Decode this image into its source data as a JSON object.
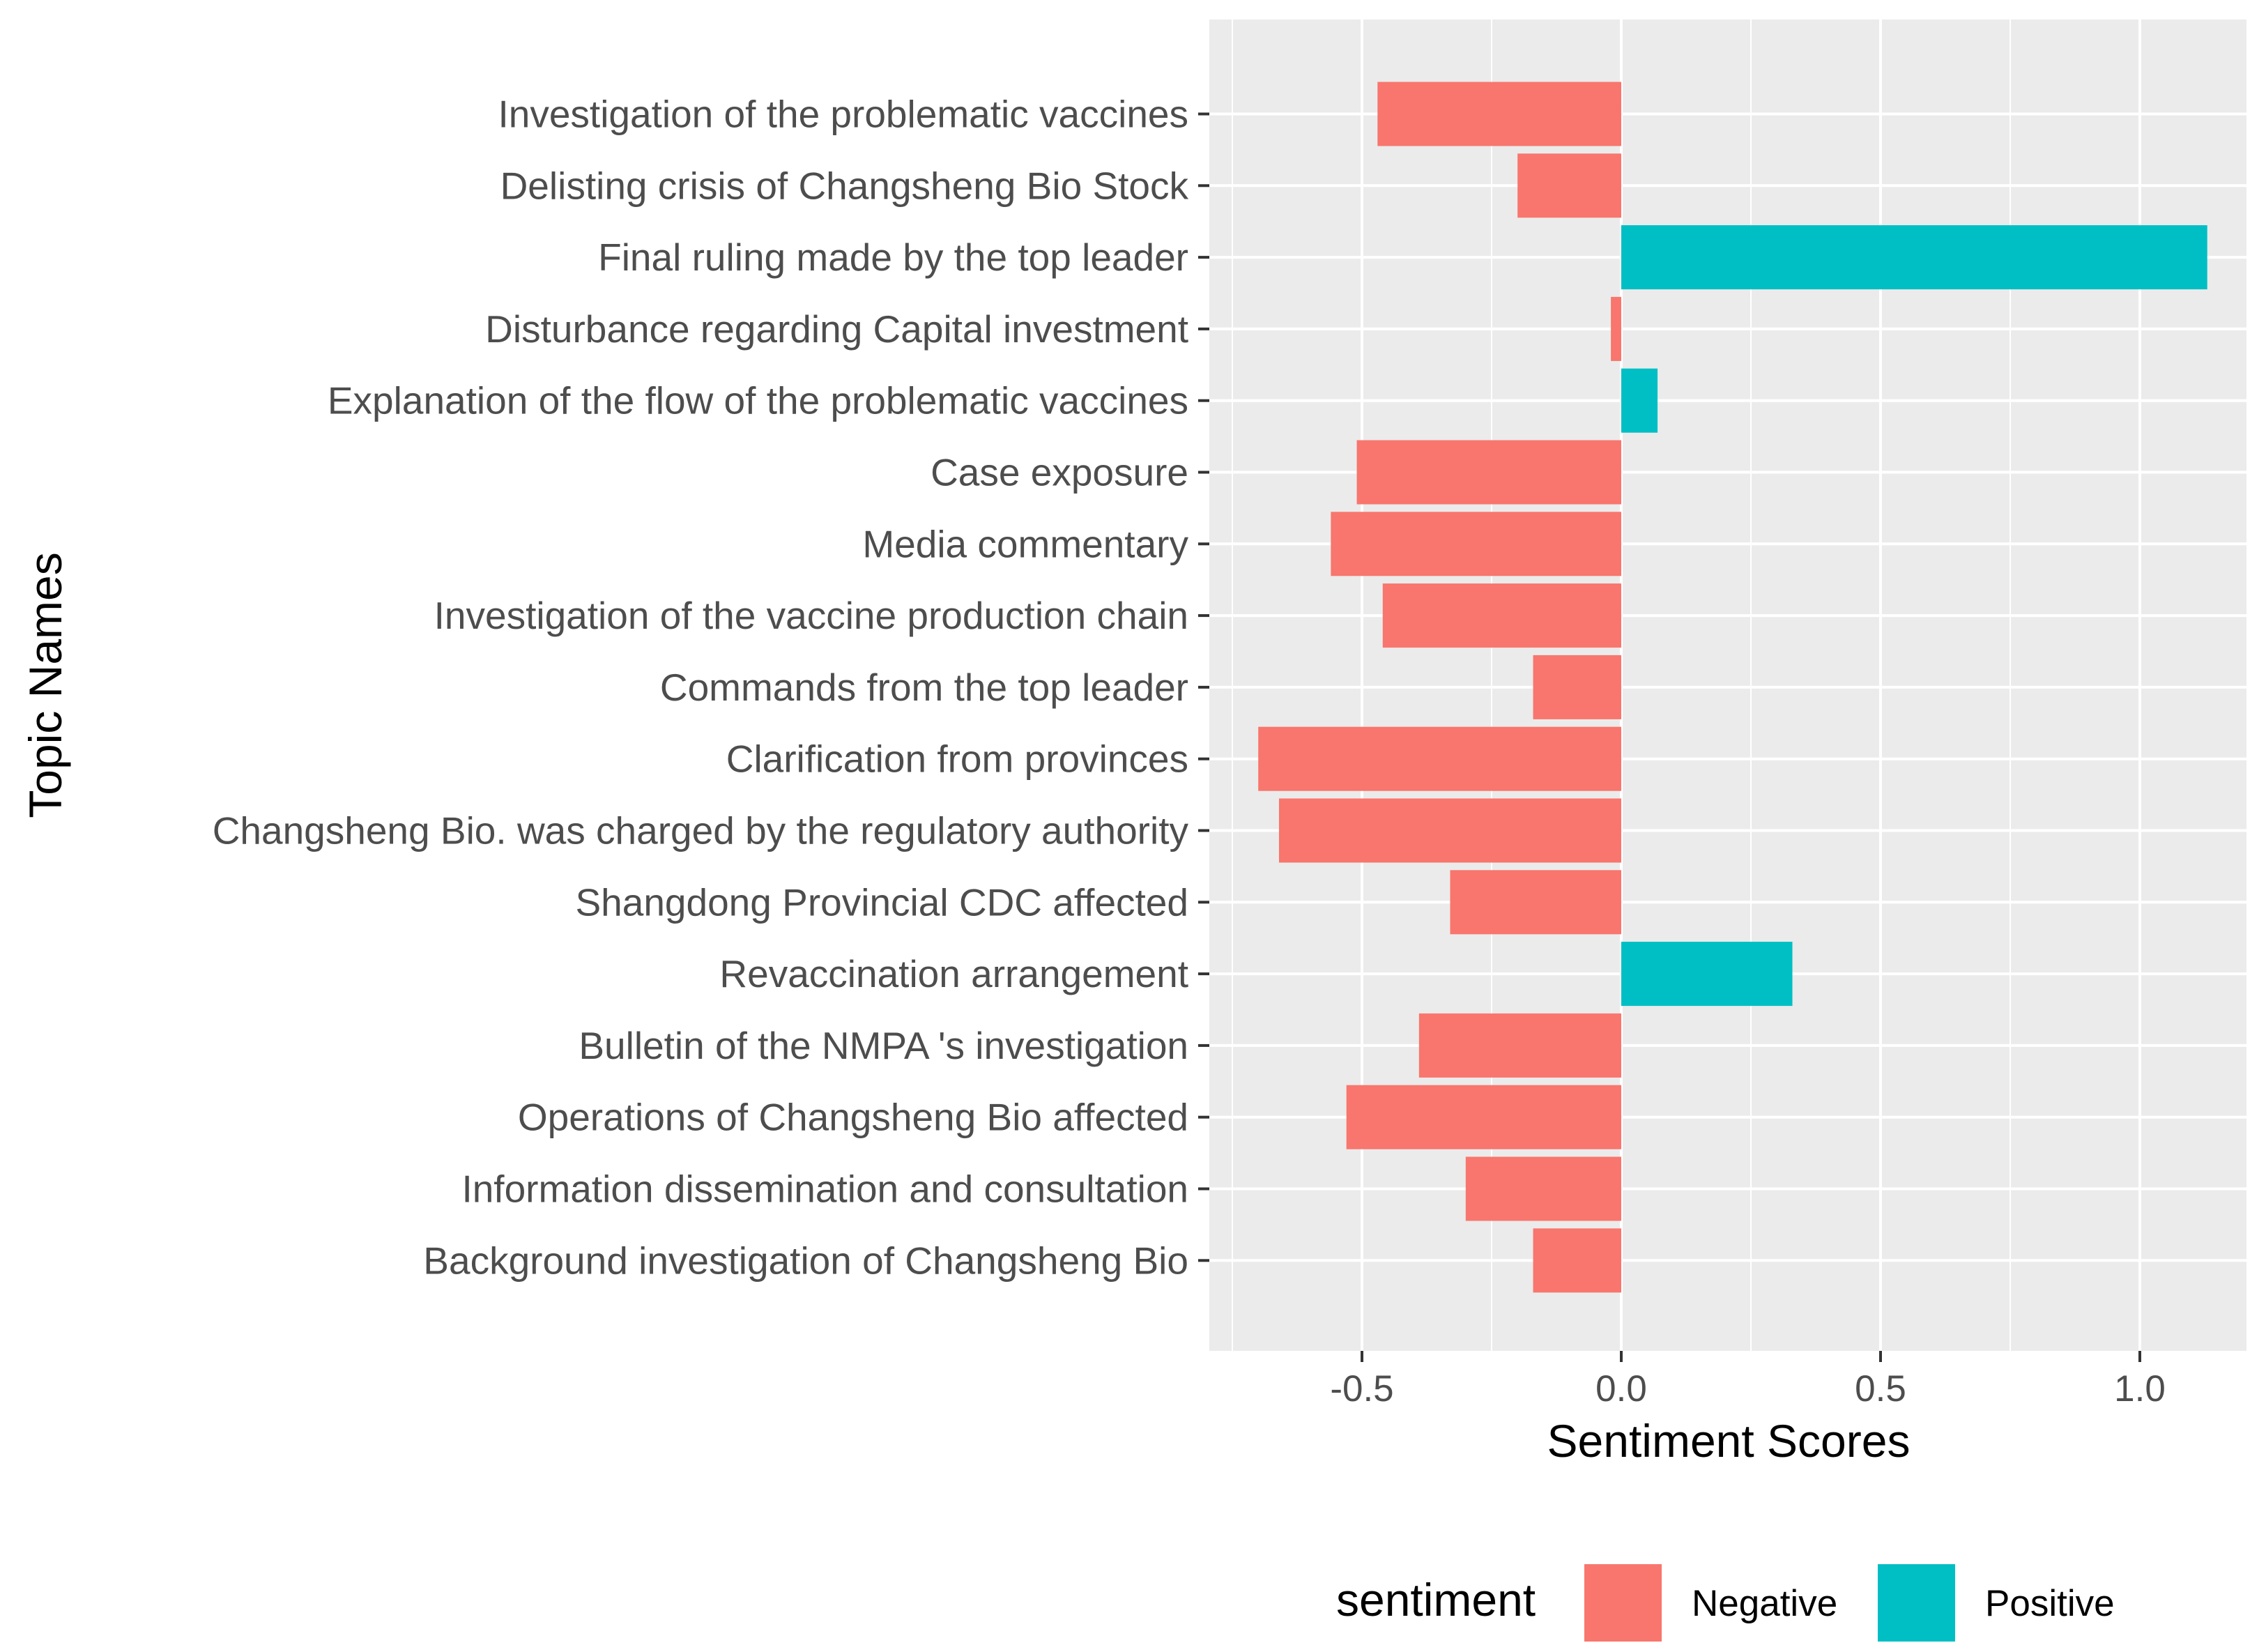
{
  "chart_data": {
    "type": "bar",
    "orientation": "horizontal",
    "title": "",
    "xlabel": "Sentiment Scores",
    "ylabel": "Topic Names",
    "xlim": [
      -0.79,
      1.2
    ],
    "xticks": [
      -0.5,
      0.0,
      0.5,
      1.0
    ],
    "xtick_labels": [
      "-0.5",
      "0.0",
      "0.5",
      "1.0"
    ],
    "grid": true,
    "categories": [
      "Investigation of the problematic vaccines",
      "Delisting crisis of Changsheng Bio Stock",
      "Final ruling made by the top leader",
      "Disturbance regarding Capital investment",
      "Explanation of the flow of the problematic vaccines ",
      "Case exposure",
      "Media commentary",
      "Investigation of the vaccine production chain",
      "Commands from the top leader",
      "Clarification from provinces",
      "Changsheng Bio. was charged by the regulatory authority",
      "Shangdong Provincial CDC affected",
      "Revaccination arrangement ",
      "Bulletin of the NMPA  's investigation",
      "Operations of Changsheng Bio affected",
      "Information dissemination and consultation",
      "Background investigation of Changsheng Bio"
    ],
    "values": [
      -0.47,
      -0.2,
      1.13,
      -0.02,
      0.07,
      -0.51,
      -0.56,
      -0.46,
      -0.17,
      -0.7,
      -0.66,
      -0.33,
      0.33,
      -0.39,
      -0.53,
      -0.3,
      -0.17
    ],
    "sentiment": [
      "Negative",
      "Negative",
      "Positive",
      "Negative",
      "Positive",
      "Negative",
      "Negative",
      "Negative",
      "Negative",
      "Negative",
      "Negative",
      "Negative",
      "Positive",
      "Negative",
      "Negative",
      "Negative",
      "Negative"
    ],
    "legend": {
      "title": "sentiment",
      "position": "bottom",
      "entries": [
        {
          "label": "Negative",
          "color": "#F8766D"
        },
        {
          "label": "Positive",
          "color": "#00BFC4"
        }
      ]
    },
    "colors": {
      "panel_background": "#EBEBEB",
      "grid": "#FFFFFF",
      "Negative": "#F8766D",
      "Positive": "#00BFC4"
    }
  }
}
